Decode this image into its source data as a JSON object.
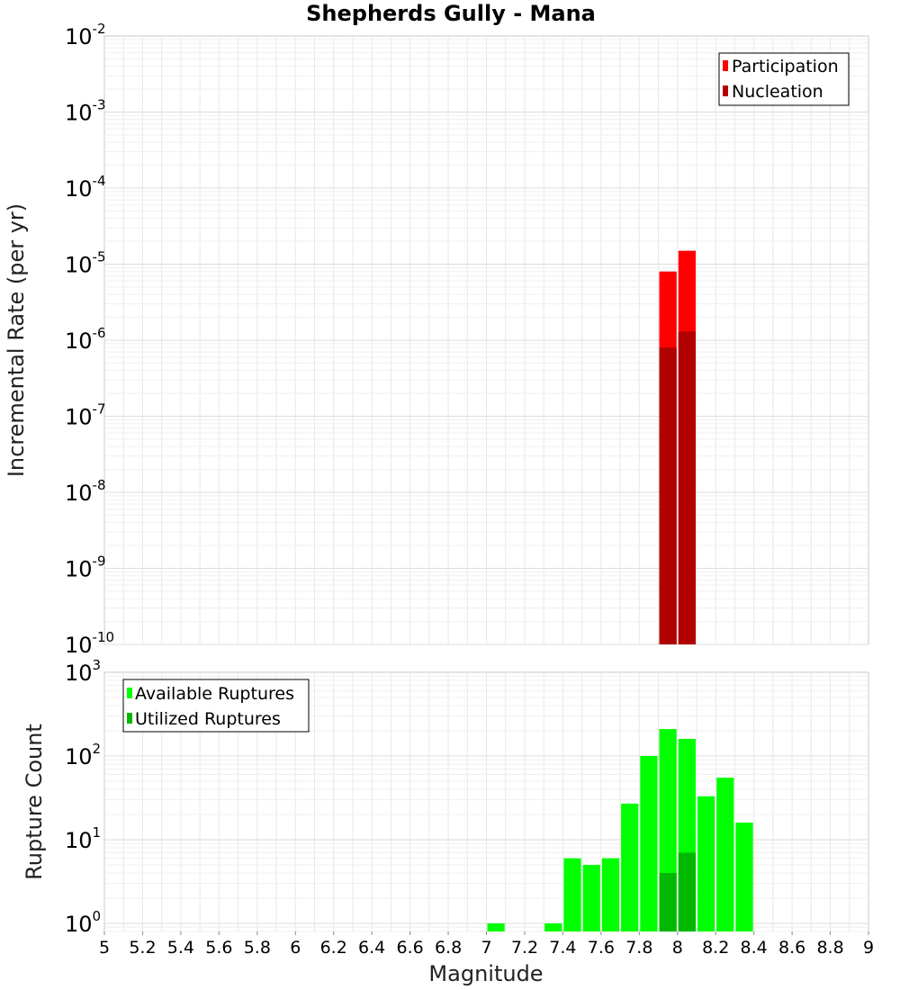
{
  "title": "Shepherds Gully - Mana",
  "colors": {
    "participation": "#ff0000",
    "nucleation": "#b00000",
    "available": "#00ff00",
    "utilized": "#00b800",
    "grid": "#e8e8e8",
    "plot_border": "#c8c8c8"
  },
  "chart_data": [
    {
      "type": "bar",
      "ylabel": "Incremental Rate (per yr)",
      "yscale": "log",
      "ylim": [
        1e-10,
        0.01
      ],
      "xlim": [
        5,
        9
      ],
      "ytick_exponents": [
        "-10",
        "-9",
        "-8",
        "-7",
        "-6",
        "-5",
        "-4",
        "-3",
        "-2"
      ],
      "legend_position": "top-right",
      "series": [
        {
          "name": "Participation",
          "x": [
            7.95,
            8.05
          ],
          "values": [
            8e-06,
            1.5e-05
          ]
        },
        {
          "name": "Nucleation",
          "x": [
            7.95,
            8.05
          ],
          "values": [
            8e-07,
            1.3e-06
          ]
        }
      ]
    },
    {
      "type": "bar",
      "ylabel": "Rupture Count",
      "xlabel": "Magnitude",
      "yscale": "log",
      "ylim": [
        0.8,
        1000
      ],
      "xlim": [
        5,
        9
      ],
      "ytick_exponents": [
        "0",
        "1",
        "2",
        "3"
      ],
      "xticks": [
        "5",
        "5.2",
        "5.4",
        "5.6",
        "5.8",
        "6",
        "6.2",
        "6.4",
        "6.6",
        "6.8",
        "7",
        "7.2",
        "7.4",
        "7.6",
        "7.8",
        "8",
        "8.2",
        "8.4",
        "8.6",
        "8.8",
        "9"
      ],
      "legend_position": "top-left",
      "series": [
        {
          "name": "Available Ruptures",
          "x": [
            7.05,
            7.35,
            7.45,
            7.55,
            7.65,
            7.75,
            7.85,
            7.95,
            8.05,
            8.15,
            8.25,
            8.35
          ],
          "values": [
            1,
            1,
            6,
            5,
            6,
            27,
            100,
            210,
            160,
            33,
            55,
            16
          ]
        },
        {
          "name": "Utilized Ruptures",
          "x": [
            7.95,
            8.05
          ],
          "values": [
            4,
            7
          ]
        }
      ]
    }
  ]
}
